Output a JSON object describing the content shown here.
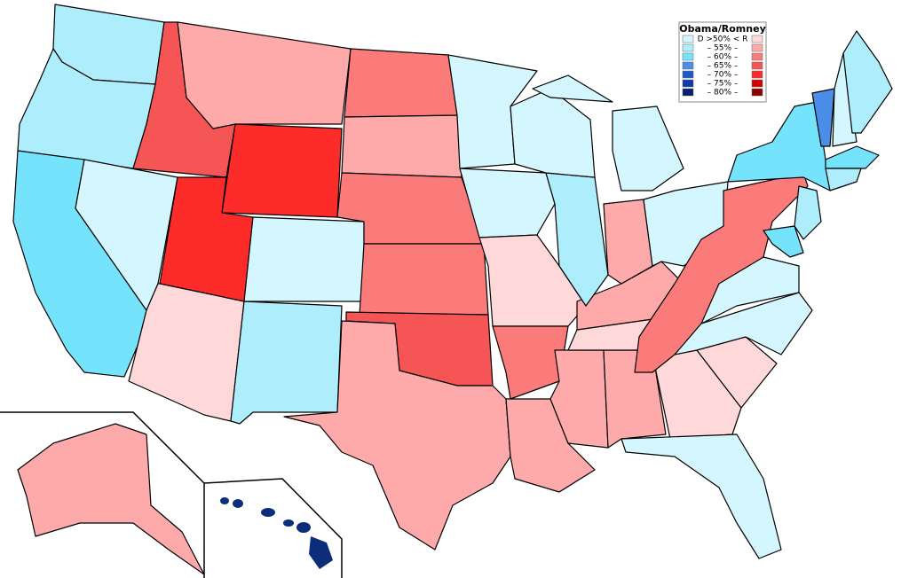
{
  "legend": {
    "title": "Obama/Romney",
    "rows": [
      {
        "text": "D >50% < R",
        "left_color": "#d3f6ff",
        "right_color": "#ffd9d9"
      },
      {
        "text": "– 55% –",
        "left_color": "#aeeefc",
        "right_color": "#ffaaaa"
      },
      {
        "text": "– 60% –",
        "left_color": "#76e3fc",
        "right_color": "#fb7b7b"
      },
      {
        "text": "– 65% –",
        "left_color": "#4a8ee8",
        "right_color": "#f65555"
      },
      {
        "text": "– 70% –",
        "left_color": "#1c5acb",
        "right_color": "#fe2b2b"
      },
      {
        "text": "– 75% –",
        "left_color": "#0c3aa5",
        "right_color": "#d00000"
      },
      {
        "text": "– 80% –",
        "left_color": "#0a1f6e",
        "right_color": "#8b0000"
      }
    ]
  }
}
